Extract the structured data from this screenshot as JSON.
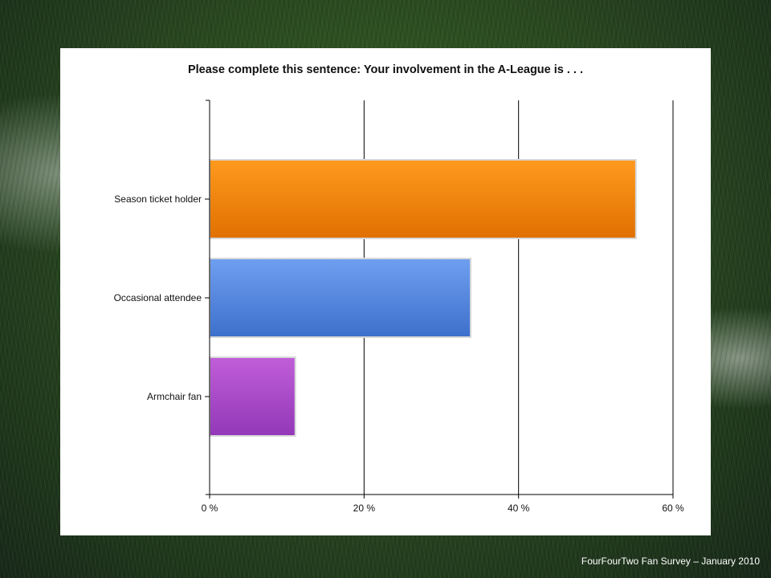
{
  "footer": {
    "caption": "FourFourTwo Fan Survey – January 2010"
  },
  "chart_data": {
    "type": "bar",
    "orientation": "horizontal",
    "title": "Please complete this sentence: Your involvement in the A-League is . . .",
    "categories": [
      "Season ticket holder",
      "Occasional attendee",
      "Armchair fan"
    ],
    "values": [
      55.2,
      33.8,
      11.1
    ],
    "unit": "%",
    "xlim": [
      0,
      60
    ],
    "xticks": [
      0,
      20,
      40,
      60
    ],
    "xtick_labels": [
      "0 %",
      "20 %",
      "40 %",
      "60 %"
    ],
    "grid": true,
    "colors": {
      "Season ticket holder": [
        "#ff9a1e",
        "#e07000"
      ],
      "Occasional attendee": [
        "#6f9ff0",
        "#3d70cc"
      ],
      "Armchair fan": [
        "#c05ed8",
        "#9238b8"
      ]
    }
  }
}
